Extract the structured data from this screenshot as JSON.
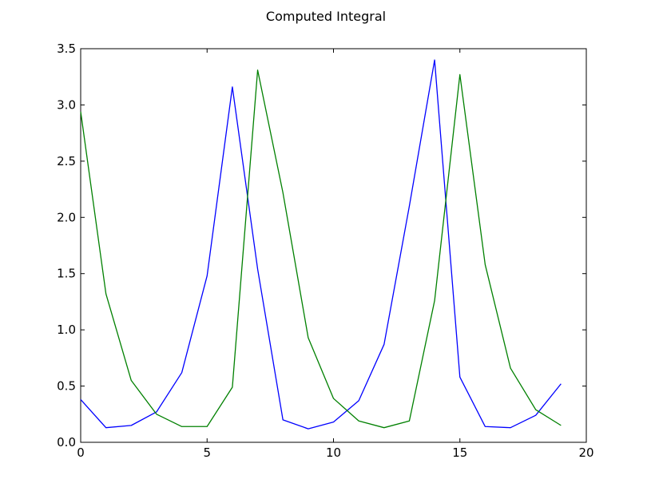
{
  "chart_data": {
    "type": "line",
    "title": "Computed Integral",
    "xlabel": "",
    "ylabel": "",
    "xlim": [
      0,
      20
    ],
    "ylim": [
      0,
      3.5
    ],
    "x_ticks": [
      0,
      5,
      10,
      15,
      20
    ],
    "x_tick_labels": [
      "0",
      "5",
      "10",
      "15",
      "20"
    ],
    "y_ticks": [
      0,
      0.5,
      1.0,
      1.5,
      2.0,
      2.5,
      3.0,
      3.5
    ],
    "y_tick_labels": [
      "0.0",
      "0.5",
      "1.0",
      "1.5",
      "2.0",
      "2.5",
      "3.0",
      "3.5"
    ],
    "grid": false,
    "legend": "none",
    "x": [
      0,
      1,
      2,
      3,
      4,
      5,
      6,
      7,
      8,
      9,
      10,
      11,
      12,
      13,
      14,
      15,
      16,
      17,
      18,
      19
    ],
    "series": [
      {
        "color": "#0000ff",
        "values": [
          0.38,
          0.13,
          0.15,
          0.27,
          0.62,
          1.48,
          3.16,
          1.54,
          0.2,
          0.12,
          0.18,
          0.37,
          0.87,
          2.1,
          3.4,
          0.58,
          0.14,
          0.13,
          0.24,
          0.52
        ]
      },
      {
        "color": "#008000",
        "values": [
          2.94,
          1.32,
          0.55,
          0.25,
          0.14,
          0.14,
          0.49,
          3.31,
          2.22,
          0.93,
          0.39,
          0.19,
          0.13,
          0.19,
          1.26,
          3.27,
          1.58,
          0.66,
          0.29,
          0.15
        ]
      }
    ]
  }
}
